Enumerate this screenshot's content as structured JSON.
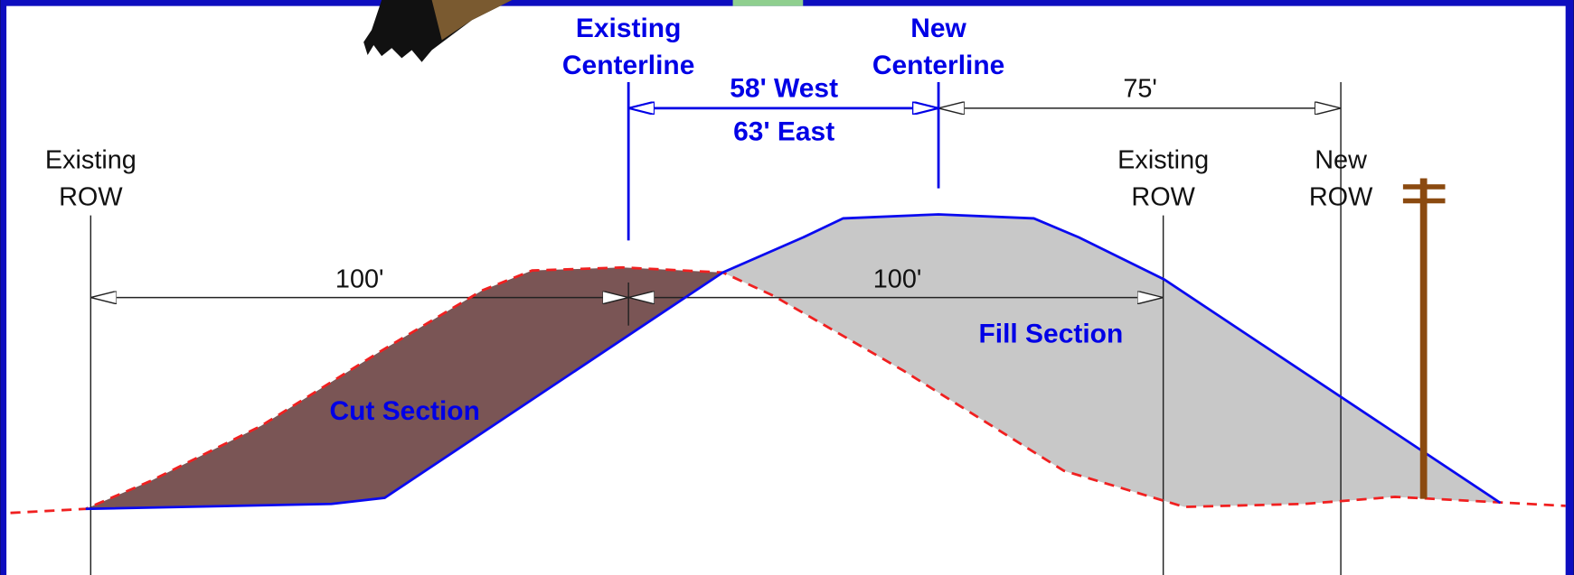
{
  "labels": {
    "existing_row_left": [
      "Existing",
      "ROW"
    ],
    "existing_centerline": [
      "Existing",
      "Centerline"
    ],
    "new_centerline": [
      "New",
      "Centerline"
    ],
    "offset_west": "58' West",
    "offset_east": "63' East",
    "dim_75": "75'",
    "dim_100_left": "100'",
    "dim_100_right": "100'",
    "existing_row_right": [
      "Existing",
      "ROW"
    ],
    "new_row": [
      "New",
      "ROW"
    ],
    "cut_section": "Cut Section",
    "fill_section": "Fill Section"
  }
}
